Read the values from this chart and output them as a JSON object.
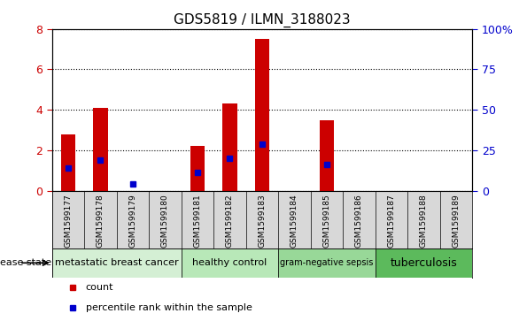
{
  "title": "GDS5819 / ILMN_3188023",
  "samples": [
    "GSM1599177",
    "GSM1599178",
    "GSM1599179",
    "GSM1599180",
    "GSM1599181",
    "GSM1599182",
    "GSM1599183",
    "GSM1599184",
    "GSM1599185",
    "GSM1599186",
    "GSM1599187",
    "GSM1599188",
    "GSM1599189"
  ],
  "counts": [
    2.8,
    4.1,
    0.0,
    0.0,
    2.2,
    4.3,
    7.5,
    0.0,
    3.5,
    0.0,
    0.0,
    0.0,
    0.0
  ],
  "percentile_ranks": [
    14,
    19,
    4,
    0,
    11,
    20,
    29,
    0,
    16,
    0,
    0,
    0,
    0
  ],
  "ylim_left": [
    0,
    8
  ],
  "ylim_right": [
    0,
    100
  ],
  "yticks_left": [
    0,
    2,
    4,
    6,
    8
  ],
  "yticks_right": [
    0,
    25,
    50,
    75,
    100
  ],
  "bar_color": "#cc0000",
  "percentile_color": "#0000cc",
  "bar_width": 0.45,
  "disease_groups": [
    {
      "label": "metastatic breast cancer",
      "start": 0,
      "end": 4,
      "color": "#d4efd4",
      "fontsize": 8
    },
    {
      "label": "healthy control",
      "start": 4,
      "end": 7,
      "color": "#b8e8b8",
      "fontsize": 8
    },
    {
      "label": "gram-negative sepsis",
      "start": 7,
      "end": 10,
      "color": "#98d898",
      "fontsize": 7
    },
    {
      "label": "tuberculosis",
      "start": 10,
      "end": 13,
      "color": "#5cba5c",
      "fontsize": 9
    }
  ],
  "tick_color_left": "#cc0000",
  "tick_color_right": "#0000cc",
  "bg_color": "#ffffff",
  "title_fontsize": 11,
  "disease_label": "disease state",
  "sample_bg_color": "#d8d8d8",
  "legend_items": [
    {
      "label": "count",
      "color": "#cc0000"
    },
    {
      "label": "percentile rank within the sample",
      "color": "#0000cc"
    }
  ]
}
